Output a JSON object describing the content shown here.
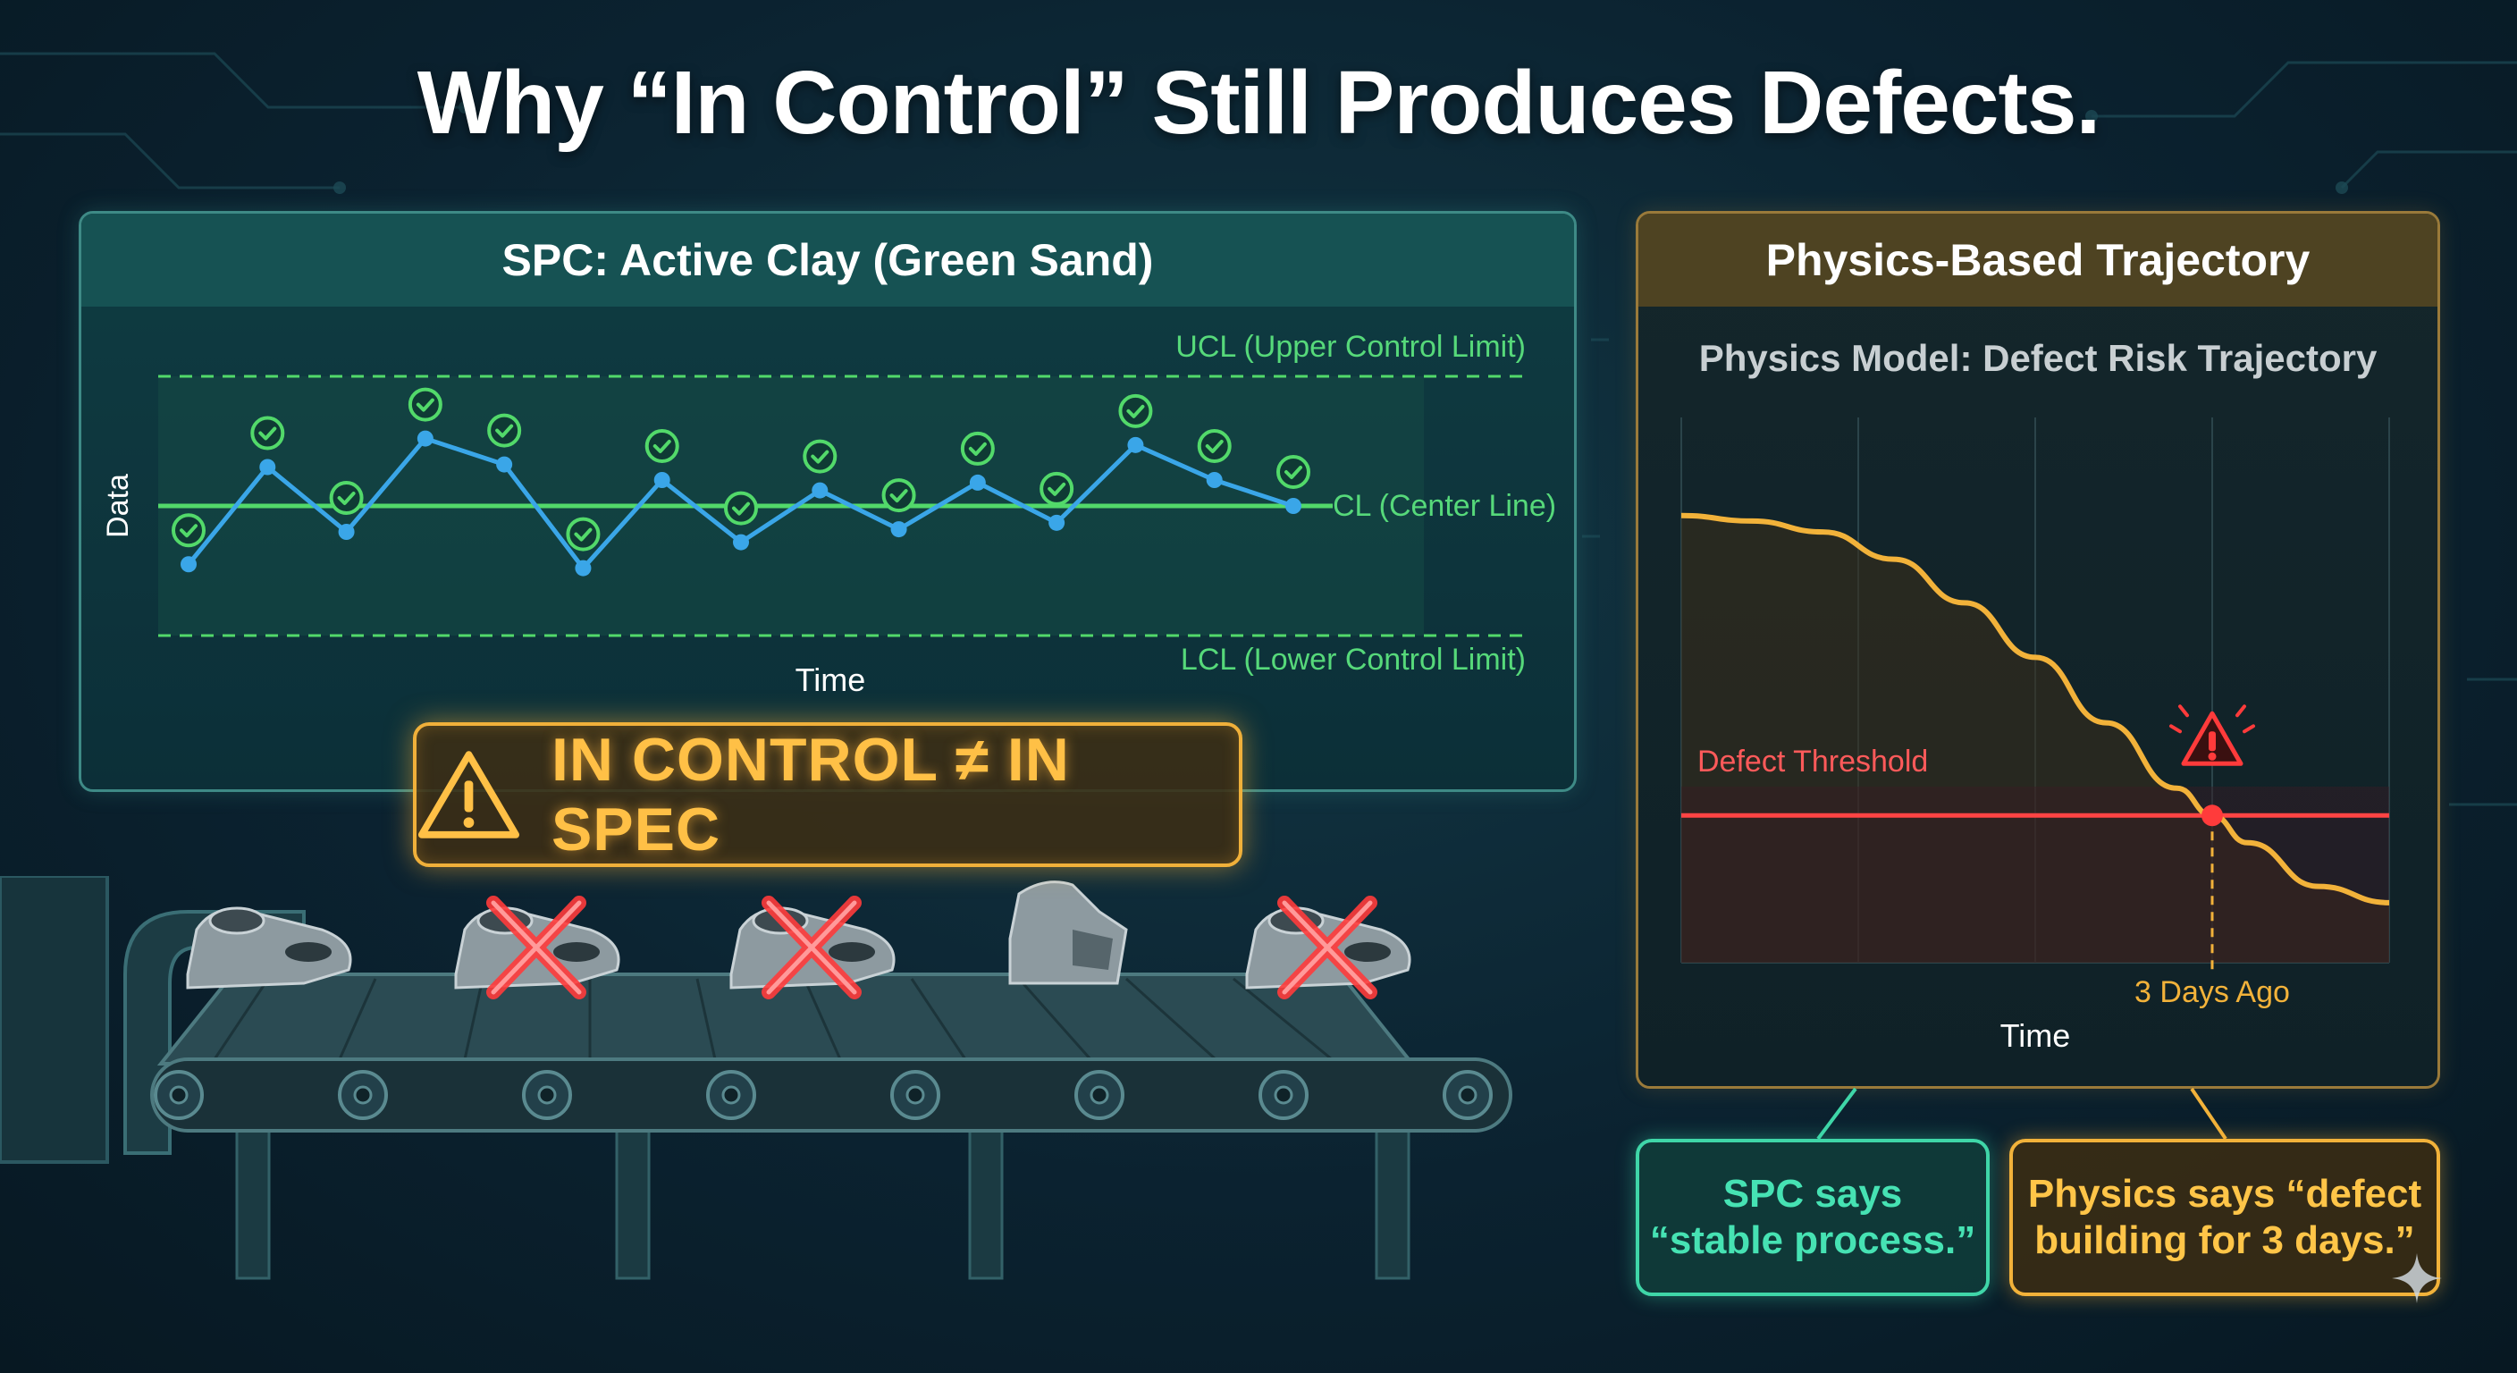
{
  "title": "Why “In Control” Still Produces Defects.",
  "spc_panel": {
    "header": "SPC: Active Clay (Green Sand)",
    "y_axis_label": "Data",
    "x_axis_label": "Time",
    "ucl_label": "UCL (Upper Control Limit)",
    "cl_label": "CL (Center Line)",
    "lcl_label": "LCL (Lower Control Limit)",
    "colors": {
      "line": "#3aa6e8",
      "center": "#52d96a",
      "limit": "#52d96a",
      "check": "#52d96a"
    }
  },
  "warning": {
    "icon": "warning-triangle-icon",
    "text": "IN CONTROL ≠ IN SPEC"
  },
  "conveyor": {
    "parts": [
      {
        "icon": "casting-part-icon",
        "defect": false
      },
      {
        "icon": "casting-part-icon",
        "defect": true
      },
      {
        "icon": "casting-part-icon",
        "defect": true
      },
      {
        "icon": "casting-part-icon",
        "defect": false
      },
      {
        "icon": "casting-part-icon",
        "defect": true
      }
    ],
    "defect_mark_color": "#ff3b3b"
  },
  "physics_panel": {
    "header": "Physics-Based Trajectory",
    "chart_title": "Physics Model: Defect Risk Trajectory",
    "threshold_label": "Defect Threshold",
    "marker_label": "3 Days Ago",
    "x_axis_label": "Time",
    "colors": {
      "curve": "#f2b23a",
      "threshold": "#ff4444"
    }
  },
  "callouts": {
    "spc": [
      "SPC says",
      "“stable process.”"
    ],
    "physics": [
      "Physics says “defect",
      "building for 3 days.”"
    ]
  },
  "chart_data": [
    {
      "type": "line",
      "title": "",
      "xlabel": "Time",
      "ylabel": "Data",
      "series": [
        {
          "name": "",
          "values": [
            -0.45,
            0.3,
            -0.2,
            0.52,
            0.32,
            -0.48,
            0.2,
            -0.28,
            0.12,
            -0.18,
            0.18,
            -0.13,
            0.47,
            0.2,
            0.0
          ]
        }
      ],
      "center_line": 0,
      "ucl": 1,
      "lcl": -1,
      "ylim": [
        -1,
        1
      ],
      "grid": false,
      "annotations": [
        "UCL (Upper Control Limit)",
        "CL (Center Line)",
        "LCL (Lower Control Limit)"
      ]
    },
    {
      "type": "line",
      "title": "Physics Model: Defect Risk Trajectory",
      "xlabel": "Time",
      "ylabel": "",
      "series": [
        {
          "name": "",
          "x": [
            0,
            0.1,
            0.2,
            0.3,
            0.4,
            0.5,
            0.6,
            0.7,
            0.75,
            0.8,
            0.9,
            1.0
          ],
          "values": [
            0.82,
            0.81,
            0.79,
            0.74,
            0.66,
            0.56,
            0.44,
            0.32,
            0.27,
            0.22,
            0.14,
            0.11
          ]
        }
      ],
      "threshold": 0.27,
      "threshold_label": "Defect Threshold",
      "crossing_label": "3 Days Ago",
      "grid": true,
      "annotations": [
        "Defect Threshold",
        "3 Days Ago"
      ]
    }
  ]
}
